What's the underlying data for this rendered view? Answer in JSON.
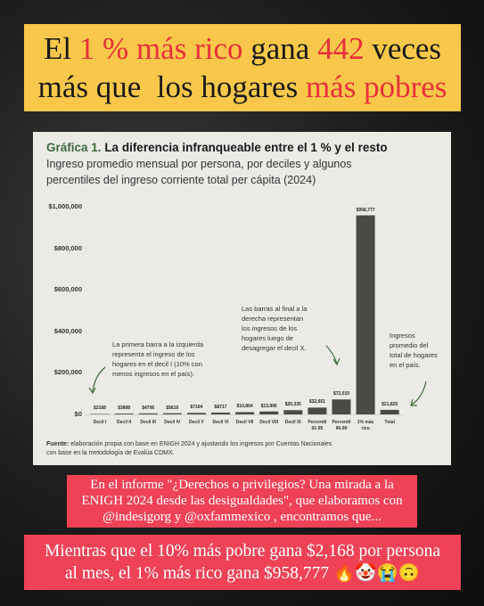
{
  "header": {
    "lines": [
      [
        {
          "text": "El ",
          "color": "#1a1a1a"
        },
        {
          "text": "1 % más rico",
          "color": "#e8303a"
        },
        {
          "text": " gana ",
          "color": "#1a1a1a"
        },
        {
          "text": "442",
          "color": "#e8303a"
        },
        {
          "text": " veces",
          "color": "#1a1a1a"
        }
      ],
      [
        {
          "text": "más que  los hogares ",
          "color": "#1a1a1a"
        },
        {
          "text": "más pobres",
          "color": "#e8303a"
        }
      ]
    ]
  },
  "chart_data": {
    "type": "bar",
    "title_prefix": "Gráfica 1.",
    "title": "La diferencia infranqueable entre el 1 % y el resto",
    "subtitle": [
      "Ingreso promedio mensual por persona, por deciles y algunos",
      "percentiles del ingreso corriente total per cápita (2024)"
    ],
    "categories": [
      "Decil I",
      "Decil II",
      "Decil III",
      "Decil IV",
      "Decil V",
      "Decil VI",
      "Decil VII",
      "Decil VIII",
      "Decil IX",
      "Percentil 91-95",
      "Percentil 96-99",
      "1% más rico",
      "Total"
    ],
    "values": [
      2168,
      3808,
      4706,
      5616,
      7104,
      8717,
      10804,
      13990,
      20335,
      32651,
      72010,
      958777,
      21825
    ],
    "value_labels": [
      "$2168",
      "$3808",
      "$4706",
      "$5616",
      "$7104",
      "$8717",
      "$10,804",
      "$13,990",
      "$20,335",
      "$32,651",
      "$72,010",
      "$958,777",
      "$21,825"
    ],
    "color": "#4a4a47",
    "ylim": [
      0,
      1000000
    ],
    "yticks": [
      {
        "value": 0,
        "label": "$0"
      },
      {
        "value": 200000,
        "label": "$200,000"
      },
      {
        "value": 400000,
        "label": "$400,000"
      },
      {
        "value": 600000,
        "label": "$600,000"
      },
      {
        "value": 800000,
        "label": "$800,000"
      },
      {
        "value": 1000000,
        "label": "$1,000,000"
      }
    ],
    "annotations": [
      [
        "La primera barra a la izquierda",
        "representa el ingreso de los",
        "hogares en el decil I (10% con",
        "menos ingresos en el país)."
      ],
      [
        "Las barras al final a la",
        "derecha representan",
        "los ingresos de los",
        "hogares luego de",
        "desagregar el decil X."
      ],
      [
        "Ingresos",
        "promedio del",
        "total de hogares",
        "en el país."
      ]
    ],
    "source_label": "Fuente:",
    "source": [
      "elaboración propia con base en ENIGH 2024 y ajustando los ingresos por Cuentas Nacionales",
      "con base en la metodología de Evalúa CDMX."
    ]
  },
  "footer": {
    "intro": [
      "En el informe \"¿Derechos o privilegios? Una mirada a la",
      "ENIGH 2024 desde las desigualdades\", que elaboramos con",
      "@indesigorg y @oxfammexico , encontramos que..."
    ],
    "highlight": [
      "Mientras que el 10% más pobre gana $2,168 por persona",
      "al mes, el 1% más rico gana $958,777 🔥🤡😭🙃"
    ]
  }
}
